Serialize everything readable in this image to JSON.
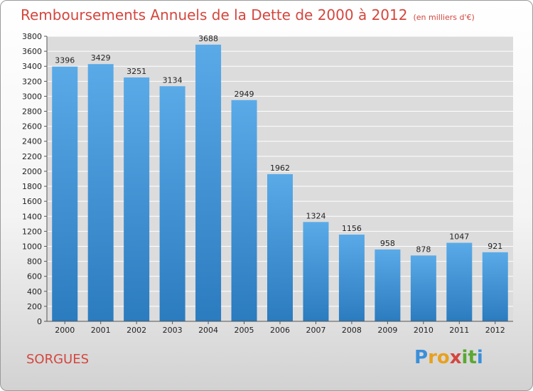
{
  "title": "Remboursements Annuels de la Dette de 2000 à 2012",
  "unit_note": "(en milliers d'€)",
  "city": "SORGUES",
  "logo": {
    "letters": [
      "P",
      "r",
      "o",
      "x",
      "i",
      "t",
      "i"
    ],
    "colors": [
      "#3a8fd9",
      "#e8a11f",
      "#e8a11f",
      "#d4463e",
      "#5aa832",
      "#5aa832",
      "#3a8fd9"
    ]
  },
  "chart_data": {
    "type": "bar",
    "title": "Remboursements Annuels de la Dette de 2000 à 2012",
    "categories": [
      "2000",
      "2001",
      "2002",
      "2003",
      "2004",
      "2005",
      "2006",
      "2007",
      "2008",
      "2009",
      "2010",
      "2011",
      "2012"
    ],
    "values": [
      3396,
      3429,
      3251,
      3134,
      3688,
      2949,
      1962,
      1324,
      1156,
      958,
      878,
      1047,
      921
    ],
    "ylim": [
      0,
      3800
    ],
    "yticks": [
      0,
      200,
      400,
      600,
      800,
      1000,
      1200,
      1400,
      1600,
      1800,
      2000,
      2200,
      2400,
      2600,
      2800,
      3000,
      3200,
      3400,
      3600,
      3800
    ],
    "grid": true,
    "bar_color": "#4f9fdf"
  }
}
